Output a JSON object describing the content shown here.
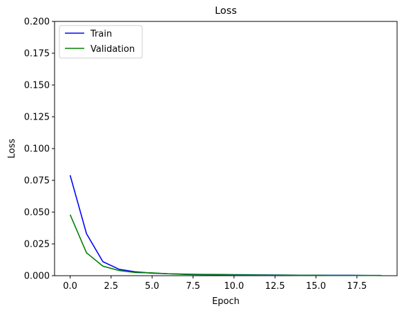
{
  "chart_data": {
    "type": "line",
    "title": "Loss",
    "xlabel": "Epoch",
    "ylabel": "Loss",
    "xlim": [
      -0.95,
      19.95
    ],
    "ylim": [
      0,
      0.2
    ],
    "x_ticks": [
      0,
      2.5,
      5,
      7.5,
      10,
      12.5,
      15,
      17.5
    ],
    "x_tick_labels": [
      "0.0",
      "2.5",
      "5.0",
      "7.5",
      "10.0",
      "12.5",
      "15.0",
      "17.5"
    ],
    "y_ticks": [
      0,
      0.025,
      0.05,
      0.075,
      0.1,
      0.125,
      0.15,
      0.175,
      0.2
    ],
    "y_tick_labels": [
      "0.000",
      "0.025",
      "0.050",
      "0.075",
      "0.100",
      "0.125",
      "0.150",
      "0.175",
      "0.200"
    ],
    "grid": false,
    "legend_position": "top-left",
    "x": [
      0,
      1,
      2,
      3,
      4,
      5,
      6,
      7,
      8,
      9,
      10,
      11,
      12,
      13,
      14,
      15,
      16,
      17,
      18,
      19
    ],
    "series": [
      {
        "name": "Train",
        "color": "#0000ff",
        "values": [
          0.079,
          0.033,
          0.011,
          0.005,
          0.003,
          0.002,
          0.0015,
          0.0012,
          0.001,
          0.0009,
          0.0008,
          0.0007,
          0.0006,
          0.0005,
          0.0004,
          0.0004,
          0.0003,
          0.0003,
          0.0002,
          0.0002
        ]
      },
      {
        "name": "Validation",
        "color": "#008000",
        "values": [
          0.048,
          0.018,
          0.0075,
          0.004,
          0.0025,
          0.0022,
          0.0015,
          0.001,
          0.0008,
          0.0007,
          0.0006,
          0.0005,
          0.0004,
          0.0004,
          0.0003,
          0.0003,
          0.0002,
          0.0002,
          0.0002,
          0.0001
        ]
      }
    ]
  }
}
